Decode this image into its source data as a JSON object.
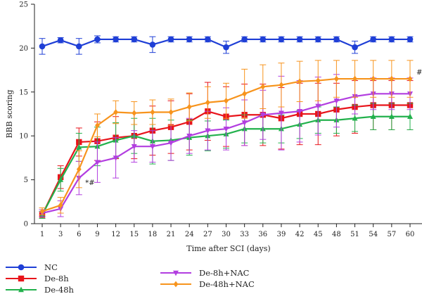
{
  "chart_data": {
    "type": "line",
    "xlabel": "Time after SCI (days)",
    "ylabel": "BBB scoring",
    "ylim": [
      0,
      25
    ],
    "x": [
      1,
      3,
      6,
      9,
      12,
      15,
      18,
      21,
      24,
      27,
      30,
      33,
      36,
      39,
      42,
      45,
      48,
      51,
      54,
      57,
      60
    ],
    "x_tick_labels": [
      "1",
      "3",
      "6",
      "9",
      "12",
      "15",
      "18",
      "21",
      "24",
      "27",
      "30",
      "33",
      "36",
      "39",
      "42",
      "45",
      "48",
      "51",
      "54",
      "57",
      "60"
    ],
    "y_ticks": [
      0,
      5,
      10,
      15,
      20,
      25
    ],
    "y_tick_labels": [
      "0",
      "5",
      "10",
      "15",
      "20",
      "25"
    ],
    "grid": false,
    "legend_position": "bottom",
    "series": [
      {
        "name": "NC",
        "color": "#1f3fd6",
        "marker": "circle",
        "values": [
          20.2,
          20.9,
          20.2,
          21,
          21,
          21,
          20.4,
          21,
          21,
          21,
          20.1,
          21,
          21,
          21,
          21,
          21,
          21,
          20.1,
          21,
          21,
          21
        ],
        "errors": [
          0.9,
          0.3,
          0.9,
          0.4,
          0.3,
          0.3,
          0.9,
          0.3,
          0.3,
          0.3,
          0.7,
          0.3,
          0.3,
          0.3,
          0.3,
          0.3,
          0.3,
          0.7,
          0.3,
          0.3,
          0.3
        ]
      },
      {
        "name": "De-8h",
        "color": "#e8141b",
        "marker": "square",
        "values": [
          1.0,
          5.3,
          9.3,
          9.4,
          9.8,
          10.0,
          10.6,
          11.0,
          11.6,
          12.8,
          12.2,
          12.4,
          12.4,
          12.0,
          12.5,
          12.5,
          13.0,
          13.3,
          13.5,
          13.5,
          13.5
        ],
        "errors": [
          0.4,
          1.3,
          1.6,
          2.2,
          2.4,
          2.6,
          2.8,
          3.0,
          3.2,
          3.3,
          3.4,
          3.5,
          3.5,
          3.5,
          3.5,
          3.5,
          3.0,
          3.0,
          2.8,
          2.8,
          2.8
        ]
      },
      {
        "name": "De-48h",
        "color": "#22b14c",
        "marker": "triangle-up",
        "values": [
          1.0,
          5.0,
          8.7,
          8.8,
          9.5,
          10.0,
          9.4,
          9.5,
          9.8,
          10.0,
          10.2,
          10.8,
          10.8,
          10.8,
          11.3,
          11.8,
          11.8,
          12.0,
          12.2,
          12.2,
          12.2
        ],
        "errors": [
          0.4,
          1.3,
          1.6,
          2.2,
          2.0,
          2.0,
          2.6,
          2.3,
          2.0,
          1.7,
          1.6,
          1.6,
          1.6,
          1.6,
          1.6,
          1.5,
          1.5,
          1.5,
          1.5,
          1.5,
          1.5
        ]
      },
      {
        "name": "De-8h+NAC",
        "color": "#b23ee0",
        "marker": "triangle-down",
        "values": [
          1.2,
          1.7,
          5.2,
          7.0,
          7.5,
          8.8,
          8.8,
          9.2,
          10.0,
          10.6,
          10.8,
          11.5,
          12.4,
          12.6,
          12.8,
          13.4,
          14.0,
          14.5,
          14.8,
          14.8,
          14.8
        ],
        "errors": [
          0.4,
          0.9,
          1.9,
          2.3,
          2.3,
          1.8,
          1.8,
          2.0,
          2.0,
          2.2,
          2.4,
          2.6,
          2.8,
          4.2,
          3.5,
          3.3,
          3.0,
          2.0,
          1.8,
          1.8,
          1.8
        ]
      },
      {
        "name": "De-48h+NAC",
        "color": "#f7941d",
        "marker": "diamond",
        "values": [
          1.4,
          2.1,
          6.2,
          11.2,
          12.7,
          12.6,
          12.7,
          12.7,
          13.3,
          13.8,
          14.0,
          14.8,
          15.6,
          15.8,
          16.2,
          16.3,
          16.5,
          16.5,
          16.5,
          16.5,
          16.5
        ],
        "errors": [
          0.4,
          0.9,
          2.1,
          1.3,
          1.3,
          1.3,
          1.4,
          1.5,
          1.6,
          1.8,
          2.0,
          2.8,
          2.5,
          2.5,
          2.3,
          2.3,
          2.1,
          2.1,
          2.1,
          2.1,
          2.1
        ]
      }
    ],
    "annotations": [
      {
        "text": "*#",
        "x": 6,
        "y": 5.2
      },
      {
        "text": "#",
        "x": 60,
        "y": 16.5
      }
    ]
  }
}
